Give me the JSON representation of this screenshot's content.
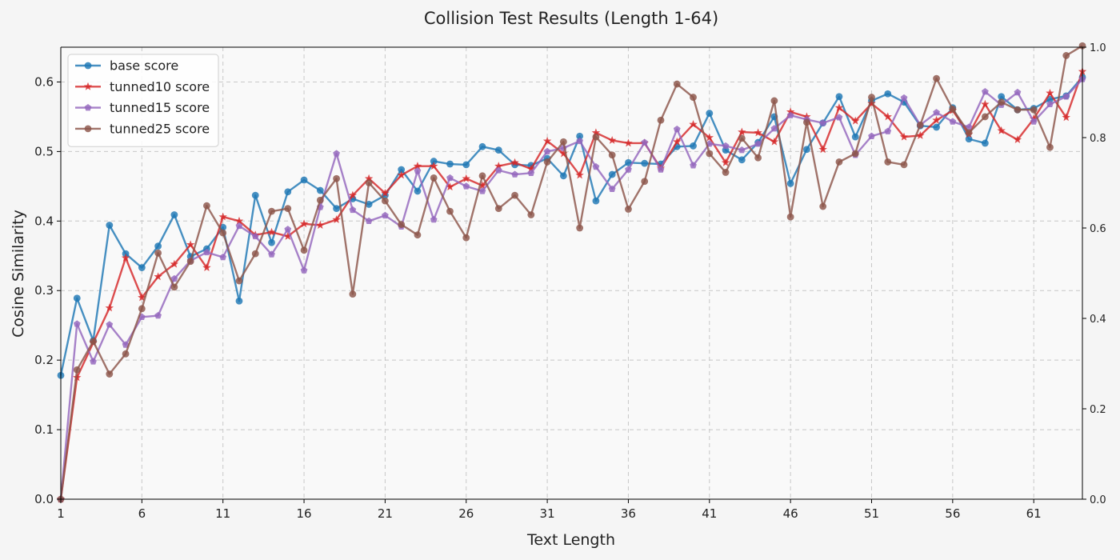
{
  "chart_data": {
    "type": "line",
    "title": "Collision Test Results (Length 1-64)",
    "xlabel": "Text Length",
    "ylabel": "Cosine Similarity",
    "xlim": [
      1,
      64
    ],
    "ylim": [
      0.0,
      0.65
    ],
    "y2lim": [
      0.0,
      1.0
    ],
    "xticks": [
      1,
      6,
      11,
      16,
      21,
      26,
      31,
      36,
      41,
      46,
      51,
      56,
      61
    ],
    "yticks": [
      0.0,
      0.1,
      0.2,
      0.3,
      0.4,
      0.5,
      0.6
    ],
    "y2ticks": [
      0.0,
      0.2,
      0.4,
      0.6,
      0.8,
      1.0
    ],
    "grid": true,
    "legend_position": "top-left",
    "x": [
      1,
      2,
      3,
      4,
      5,
      6,
      7,
      8,
      9,
      10,
      11,
      12,
      13,
      14,
      15,
      16,
      17,
      18,
      19,
      20,
      21,
      22,
      23,
      24,
      25,
      26,
      27,
      28,
      29,
      30,
      31,
      32,
      33,
      34,
      35,
      36,
      37,
      38,
      39,
      40,
      41,
      42,
      43,
      44,
      45,
      46,
      47,
      48,
      49,
      50,
      51,
      52,
      53,
      54,
      55,
      56,
      57,
      58,
      59,
      60,
      61,
      62,
      63,
      64
    ],
    "series": [
      {
        "name": "base score",
        "color": "#1f77b4",
        "marker": "circle",
        "values": [
          0.178,
          0.289,
          0.228,
          0.394,
          0.353,
          0.333,
          0.364,
          0.409,
          0.349,
          0.36,
          0.391,
          0.285,
          0.437,
          0.369,
          0.442,
          0.459,
          0.444,
          0.418,
          0.432,
          0.424,
          0.437,
          0.474,
          0.443,
          0.486,
          0.482,
          0.481,
          0.507,
          0.502,
          0.481,
          0.48,
          0.49,
          0.465,
          0.522,
          0.429,
          0.467,
          0.484,
          0.483,
          0.482,
          0.507,
          0.508,
          0.555,
          0.502,
          0.488,
          0.513,
          0.55,
          0.454,
          0.503,
          0.541,
          0.579,
          0.521,
          0.573,
          0.583,
          0.571,
          0.537,
          0.535,
          0.563,
          0.518,
          0.512,
          0.579,
          0.56,
          0.562,
          0.575,
          0.58,
          0.607
        ]
      },
      {
        "name": "tunned10 score",
        "color": "#d62728",
        "marker": "star",
        "values": [
          0.0,
          0.175,
          0.225,
          0.275,
          0.347,
          0.29,
          0.32,
          0.338,
          0.366,
          0.333,
          0.406,
          0.4,
          0.38,
          0.384,
          0.378,
          0.396,
          0.394,
          0.402,
          0.437,
          0.461,
          0.44,
          0.466,
          0.479,
          0.479,
          0.449,
          0.461,
          0.451,
          0.479,
          0.484,
          0.475,
          0.515,
          0.497,
          0.466,
          0.527,
          0.516,
          0.512,
          0.512,
          0.476,
          0.514,
          0.539,
          0.52,
          0.484,
          0.528,
          0.527,
          0.514,
          0.557,
          0.55,
          0.503,
          0.563,
          0.544,
          0.569,
          0.55,
          0.521,
          0.523,
          0.545,
          0.559,
          0.525,
          0.568,
          0.53,
          0.517,
          0.547,
          0.584,
          0.549,
          0.615
        ]
      },
      {
        "name": "tunned15 score",
        "color": "#9467bd",
        "marker": "diamond",
        "values": [
          0.0,
          0.252,
          0.198,
          0.251,
          0.222,
          0.262,
          0.264,
          0.317,
          0.343,
          0.355,
          0.348,
          0.393,
          0.378,
          0.352,
          0.388,
          0.329,
          0.42,
          0.497,
          0.416,
          0.4,
          0.408,
          0.392,
          0.472,
          0.402,
          0.462,
          0.45,
          0.443,
          0.473,
          0.467,
          0.469,
          0.5,
          0.505,
          0.515,
          0.478,
          0.446,
          0.474,
          0.513,
          0.474,
          0.532,
          0.48,
          0.511,
          0.508,
          0.502,
          0.511,
          0.533,
          0.552,
          0.546,
          0.541,
          0.549,
          0.495,
          0.522,
          0.529,
          0.577,
          0.538,
          0.556,
          0.543,
          0.535,
          0.586,
          0.567,
          0.585,
          0.543,
          0.568,
          0.579,
          0.604
        ]
      },
      {
        "name": "tunned25 score",
        "color": "#8c564b",
        "marker": "circle",
        "values": [
          0.0,
          0.186,
          0.227,
          0.18,
          0.209,
          0.274,
          0.354,
          0.305,
          0.342,
          0.422,
          0.383,
          0.314,
          0.353,
          0.414,
          0.418,
          0.358,
          0.43,
          0.461,
          0.295,
          0.455,
          0.429,
          0.395,
          0.38,
          0.462,
          0.414,
          0.376,
          0.465,
          0.418,
          0.437,
          0.409,
          0.485,
          0.514,
          0.39,
          0.521,
          0.495,
          0.417,
          0.457,
          0.545,
          0.597,
          0.578,
          0.497,
          0.47,
          0.519,
          0.491,
          0.573,
          0.406,
          0.542,
          0.421,
          0.485,
          0.497,
          0.578,
          0.485,
          0.481,
          0.538,
          0.605,
          0.561,
          0.527,
          0.55,
          0.571,
          0.56,
          0.56,
          0.506,
          0.638,
          0.652
        ]
      }
    ]
  }
}
